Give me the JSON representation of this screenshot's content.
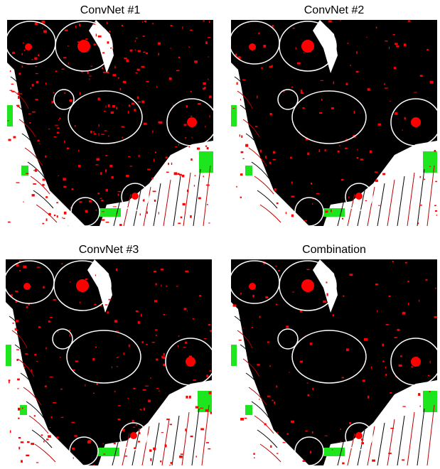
{
  "panels": [
    {
      "title": "ConvNet #1"
    },
    {
      "title": "ConvNet #2"
    },
    {
      "title": "ConvNet #3"
    },
    {
      "title": "Combination"
    }
  ]
}
